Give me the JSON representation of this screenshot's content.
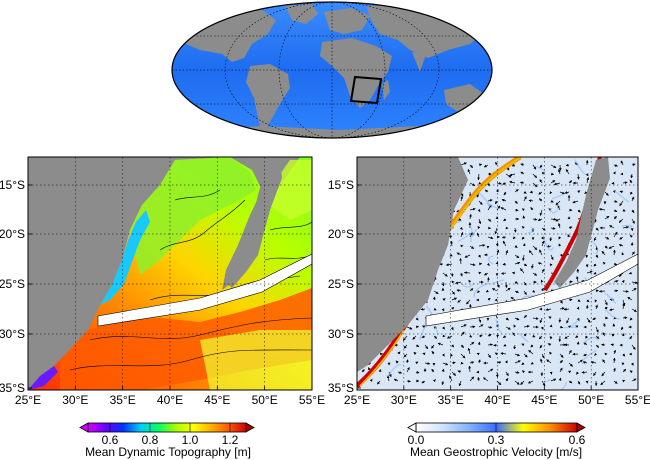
{
  "globe": {
    "box_label": ""
  },
  "left_map": {
    "lat_ticks": [
      "15°S",
      "20°S",
      "25°S",
      "30°S",
      "35°S"
    ],
    "lon_ticks": [
      "25°E",
      "30°E",
      "35°E",
      "40°E",
      "45°E",
      "50°E",
      "55°E"
    ],
    "colorbar": {
      "label": "Mean Dynamic Topography [m]",
      "ticks": [
        "0.6",
        "0.8",
        "1.0",
        "1.2"
      ],
      "colors": [
        "#d400ff",
        "#6a00ff",
        "#0033ff",
        "#00ccff",
        "#00ff66",
        "#aaff00",
        "#ffff00",
        "#ffb000",
        "#ff5a00",
        "#d00000"
      ]
    }
  },
  "right_map": {
    "lat_ticks": [
      "15°S",
      "20°S",
      "25°S",
      "30°S",
      "35°S"
    ],
    "lon_ticks": [
      "25°E",
      "30°E",
      "35°E",
      "40°E",
      "45°E",
      "50°E",
      "55°E"
    ],
    "colorbar": {
      "label": "Mean Geostrophic Velocity [m/s]",
      "ticks": [
        "0.0",
        "0.3",
        "0.6"
      ],
      "colors": [
        "#ffffff",
        "#cfe3ff",
        "#7fb2ff",
        "#3a6dff",
        "#ffff00",
        "#ff8c00",
        "#cc0000"
      ]
    }
  },
  "colors": {
    "land": "#8c8c8c",
    "ocean_blue": "#1e7bff",
    "track": "#ffffff"
  }
}
